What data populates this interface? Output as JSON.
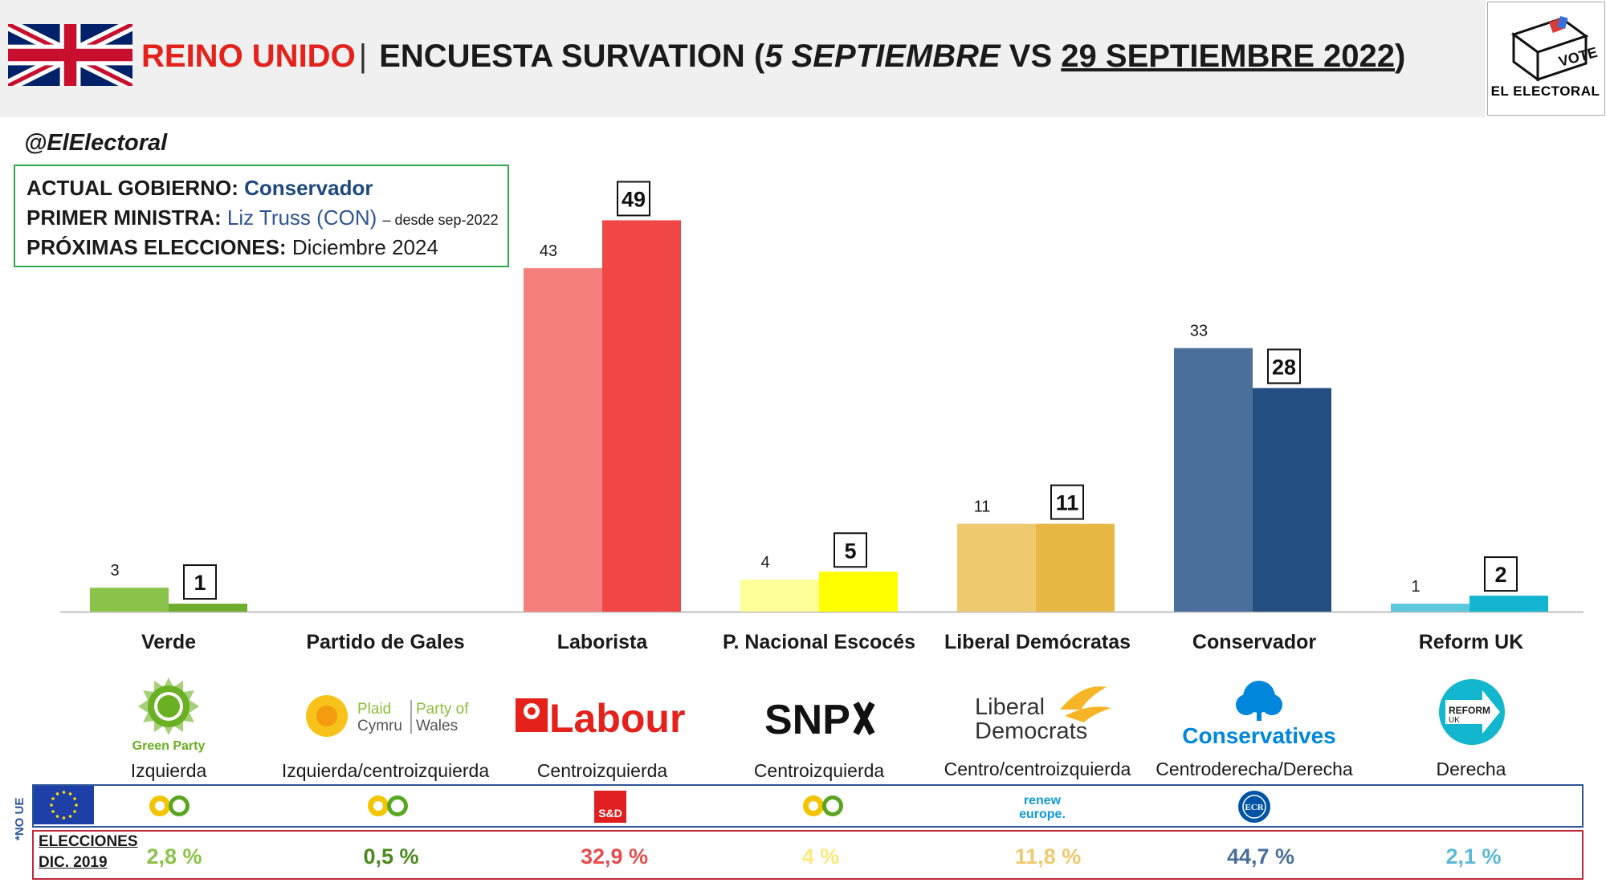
{
  "header": {
    "country": "REINO UNIDO",
    "separator": "|",
    "prefix": "ENCUESTA",
    "pollster": "SURVATION",
    "open_paren": "(",
    "date_a": "5 SEPTIEMBRE",
    "vs": "VS",
    "date_b": "29 SEPTIEMBRE 2022",
    "close_paren": ")"
  },
  "logo": {
    "badge": "VOTE",
    "name": "EL ELECTORAL"
  },
  "handle": "@ElElectoral",
  "info": {
    "gov_label": "ACTUAL GOBIERNO:",
    "gov_value": "Conservador",
    "pm_label": "PRIMER MINISTRA:",
    "pm_value": "Liz Truss (CON)",
    "pm_note": "– desde sep-2022",
    "next_label": "PRÓXIMAS ELECCIONES:",
    "next_value": "Diciembre 2024"
  },
  "colors": {
    "verde": [
      "#8bc34a",
      "#6fad2f"
    ],
    "gales": [
      "#cccccc",
      "#aaaaaa"
    ],
    "laborista": [
      "#f47f7b",
      "#f04646"
    ],
    "snp": [
      "#ffff99",
      "#ffff00"
    ],
    "libdem": [
      "#eec96d",
      "#e7b944"
    ],
    "conservador": [
      "#4a6f9b",
      "#234e81"
    ],
    "reform": [
      "#5bc8dc",
      "#13b5d1"
    ]
  },
  "chart_data": {
    "type": "bar",
    "categories": [
      "Verde",
      "Partido de Gales",
      "Laborista",
      "P. Nacional Escocés",
      "Liberal Demócratas",
      "Conservador",
      "Reform UK"
    ],
    "series": [
      {
        "values": [
          3,
          null,
          43,
          4,
          11,
          33,
          1
        ]
      },
      {
        "values": [
          1,
          null,
          49,
          5,
          11,
          28,
          2
        ]
      }
    ],
    "ylim": [
      0,
      49
    ]
  },
  "logos": {
    "green": "Green Party",
    "plaid1": "Plaid",
    "plaid2": "Cymru",
    "plaid3": "Party of",
    "plaid4": "Wales",
    "labour": "Labour",
    "snp": "SNP",
    "libdem1": "Liberal",
    "libdem2": "Democrats",
    "cons": "Conservatives",
    "reform1": "REFORM",
    "reform2": "UK"
  },
  "ideologies": [
    "Izquierda",
    "Izquierda/centroizquierda",
    "Centroizquierda",
    "Centroizquierda",
    "Centro/centroizquierda",
    "Centroderecha/Derecha",
    "Derecha"
  ],
  "eu_groups": {
    "noue": "*NO UE",
    "sd": "S&D",
    "renew1": "renew",
    "renew2": "europe.",
    "ecr": "ECR"
  },
  "elections": {
    "label1": "ELECCIONES",
    "label2": "DIC. 2019",
    "values": [
      "2,8 %",
      "0,5 %",
      "32,9 %",
      "4 %",
      "11,8 %",
      "44,7 %",
      "2,1 %"
    ],
    "colors": [
      "#8bc34a",
      "#4a8a1f",
      "#e84c4c",
      "#ffe87a",
      "#eec96d",
      "#4a6f9b",
      "#5bb8d8"
    ]
  }
}
